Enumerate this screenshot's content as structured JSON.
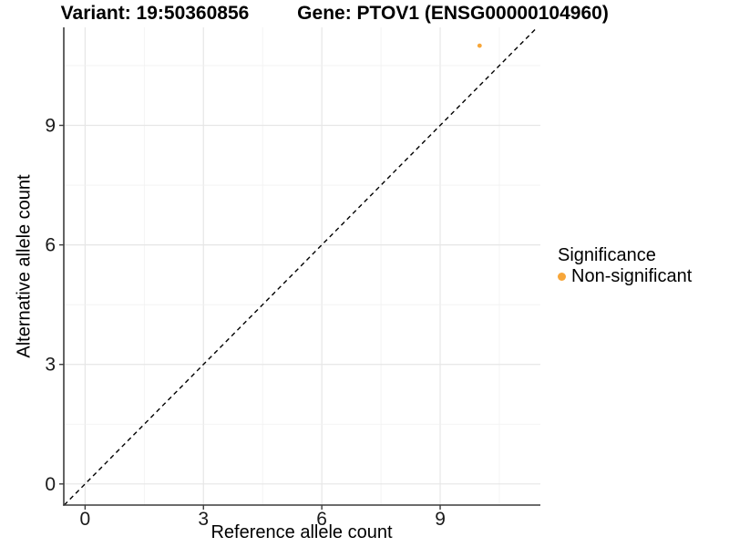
{
  "titles": {
    "variant": "Variant: 19:50360856",
    "gene": "Gene: PTOV1 (ENSG00000104960)"
  },
  "legend": {
    "title": "Significance",
    "items": [
      {
        "label": "Non-significant",
        "color": "#F7A639"
      }
    ]
  },
  "chart_data": {
    "type": "scatter",
    "title_left": "Variant: 19:50360856",
    "title_right": "Gene: PTOV1 (ENSG00000104960)",
    "xlabel": "Reference allele count",
    "ylabel": "Alternative allele count",
    "xlim": [
      -0.54,
      11.54
    ],
    "ylim": [
      -0.53,
      11.46
    ],
    "x_ticks": [
      0,
      3,
      6,
      9
    ],
    "y_ticks": [
      0,
      3,
      6,
      9
    ],
    "minor_grid_step": 1.5,
    "grid": true,
    "grid_major_color": "#E6E6E6",
    "grid_minor_color": "#F1F1F1",
    "axis_color": "#3c3c3c",
    "tick_label_color": "#1a1a1a",
    "identity_line": {
      "style": "dashed",
      "color": "#000000",
      "from": -0.53,
      "to": 11.46
    },
    "series": [
      {
        "name": "Non-significant",
        "color": "#F7A639",
        "point_radius": 2.4,
        "points": [
          {
            "x": 10,
            "y": 11
          }
        ]
      }
    ],
    "legend_position": "right",
    "legend_title": "Significance"
  }
}
